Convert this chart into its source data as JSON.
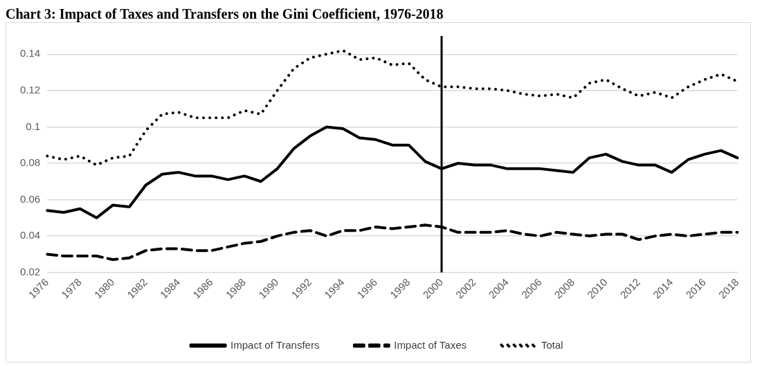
{
  "chart_data": {
    "type": "line",
    "title": "Chart 3: Impact of Taxes and Transfers on the Gini Coefficient, 1976-2018",
    "categories": [
      "1976",
      null,
      "1978",
      null,
      "1980",
      null,
      "1982",
      null,
      "1984",
      null,
      "1986",
      null,
      "1988",
      null,
      "1990",
      null,
      "1992",
      null,
      "1994",
      null,
      "1996",
      null,
      "1998",
      null,
      "2000",
      null,
      "2002",
      null,
      "2004",
      null,
      "2006",
      null,
      "2008",
      null,
      "2010",
      null,
      "2012",
      null,
      "2014",
      null,
      "2016",
      null,
      "2018"
    ],
    "series": [
      {
        "name": "Impact of Transfers",
        "color": "#000000",
        "line_style": "solid",
        "values": [
          0.054,
          0.053,
          0.055,
          0.05,
          0.057,
          0.056,
          0.068,
          0.074,
          0.075,
          0.073,
          0.073,
          0.071,
          0.073,
          0.07,
          0.077,
          0.088,
          0.095,
          0.1,
          0.099,
          0.094,
          0.093,
          0.09,
          0.09,
          0.081,
          0.077,
          0.08,
          0.079,
          0.079,
          0.077,
          0.077,
          0.077,
          0.076,
          0.075,
          0.083,
          0.085,
          0.081,
          0.079,
          0.079,
          0.075,
          0.082,
          0.085,
          0.087,
          0.083
        ]
      },
      {
        "name": "Impact of Taxes",
        "color": "#000000",
        "line_style": "dashed",
        "values": [
          0.03,
          0.029,
          0.029,
          0.029,
          0.027,
          0.028,
          0.032,
          0.033,
          0.033,
          0.032,
          0.032,
          0.034,
          0.036,
          0.037,
          0.04,
          0.042,
          0.043,
          0.04,
          0.043,
          0.043,
          0.045,
          0.044,
          0.045,
          0.046,
          0.045,
          0.042,
          0.042,
          0.042,
          0.043,
          0.041,
          0.04,
          0.042,
          0.041,
          0.04,
          0.041,
          0.041,
          0.038,
          0.04,
          0.041,
          0.04,
          0.041,
          0.042,
          0.042
        ]
      },
      {
        "name": "Total",
        "color": "#000000",
        "line_style": "dotted",
        "values": [
          0.084,
          0.082,
          0.084,
          0.079,
          0.083,
          0.084,
          0.098,
          0.107,
          0.108,
          0.105,
          0.105,
          0.105,
          0.109,
          0.107,
          0.12,
          0.132,
          0.138,
          0.14,
          0.142,
          0.137,
          0.138,
          0.134,
          0.135,
          0.126,
          0.122,
          0.122,
          0.121,
          0.121,
          0.12,
          0.118,
          0.117,
          0.118,
          0.116,
          0.124,
          0.126,
          0.121,
          0.117,
          0.119,
          0.116,
          0.122,
          0.126,
          0.129,
          0.125
        ]
      }
    ],
    "ylim": [
      0.02,
      0.15
    ],
    "yticks": [
      0.02,
      0.04,
      0.06,
      0.08,
      0.1,
      0.12,
      0.14
    ],
    "ref_lines": [
      {
        "axis": "x",
        "value": "2000",
        "color": "#000000"
      }
    ],
    "grid": "y",
    "legend": "bottom",
    "marker": "none"
  }
}
